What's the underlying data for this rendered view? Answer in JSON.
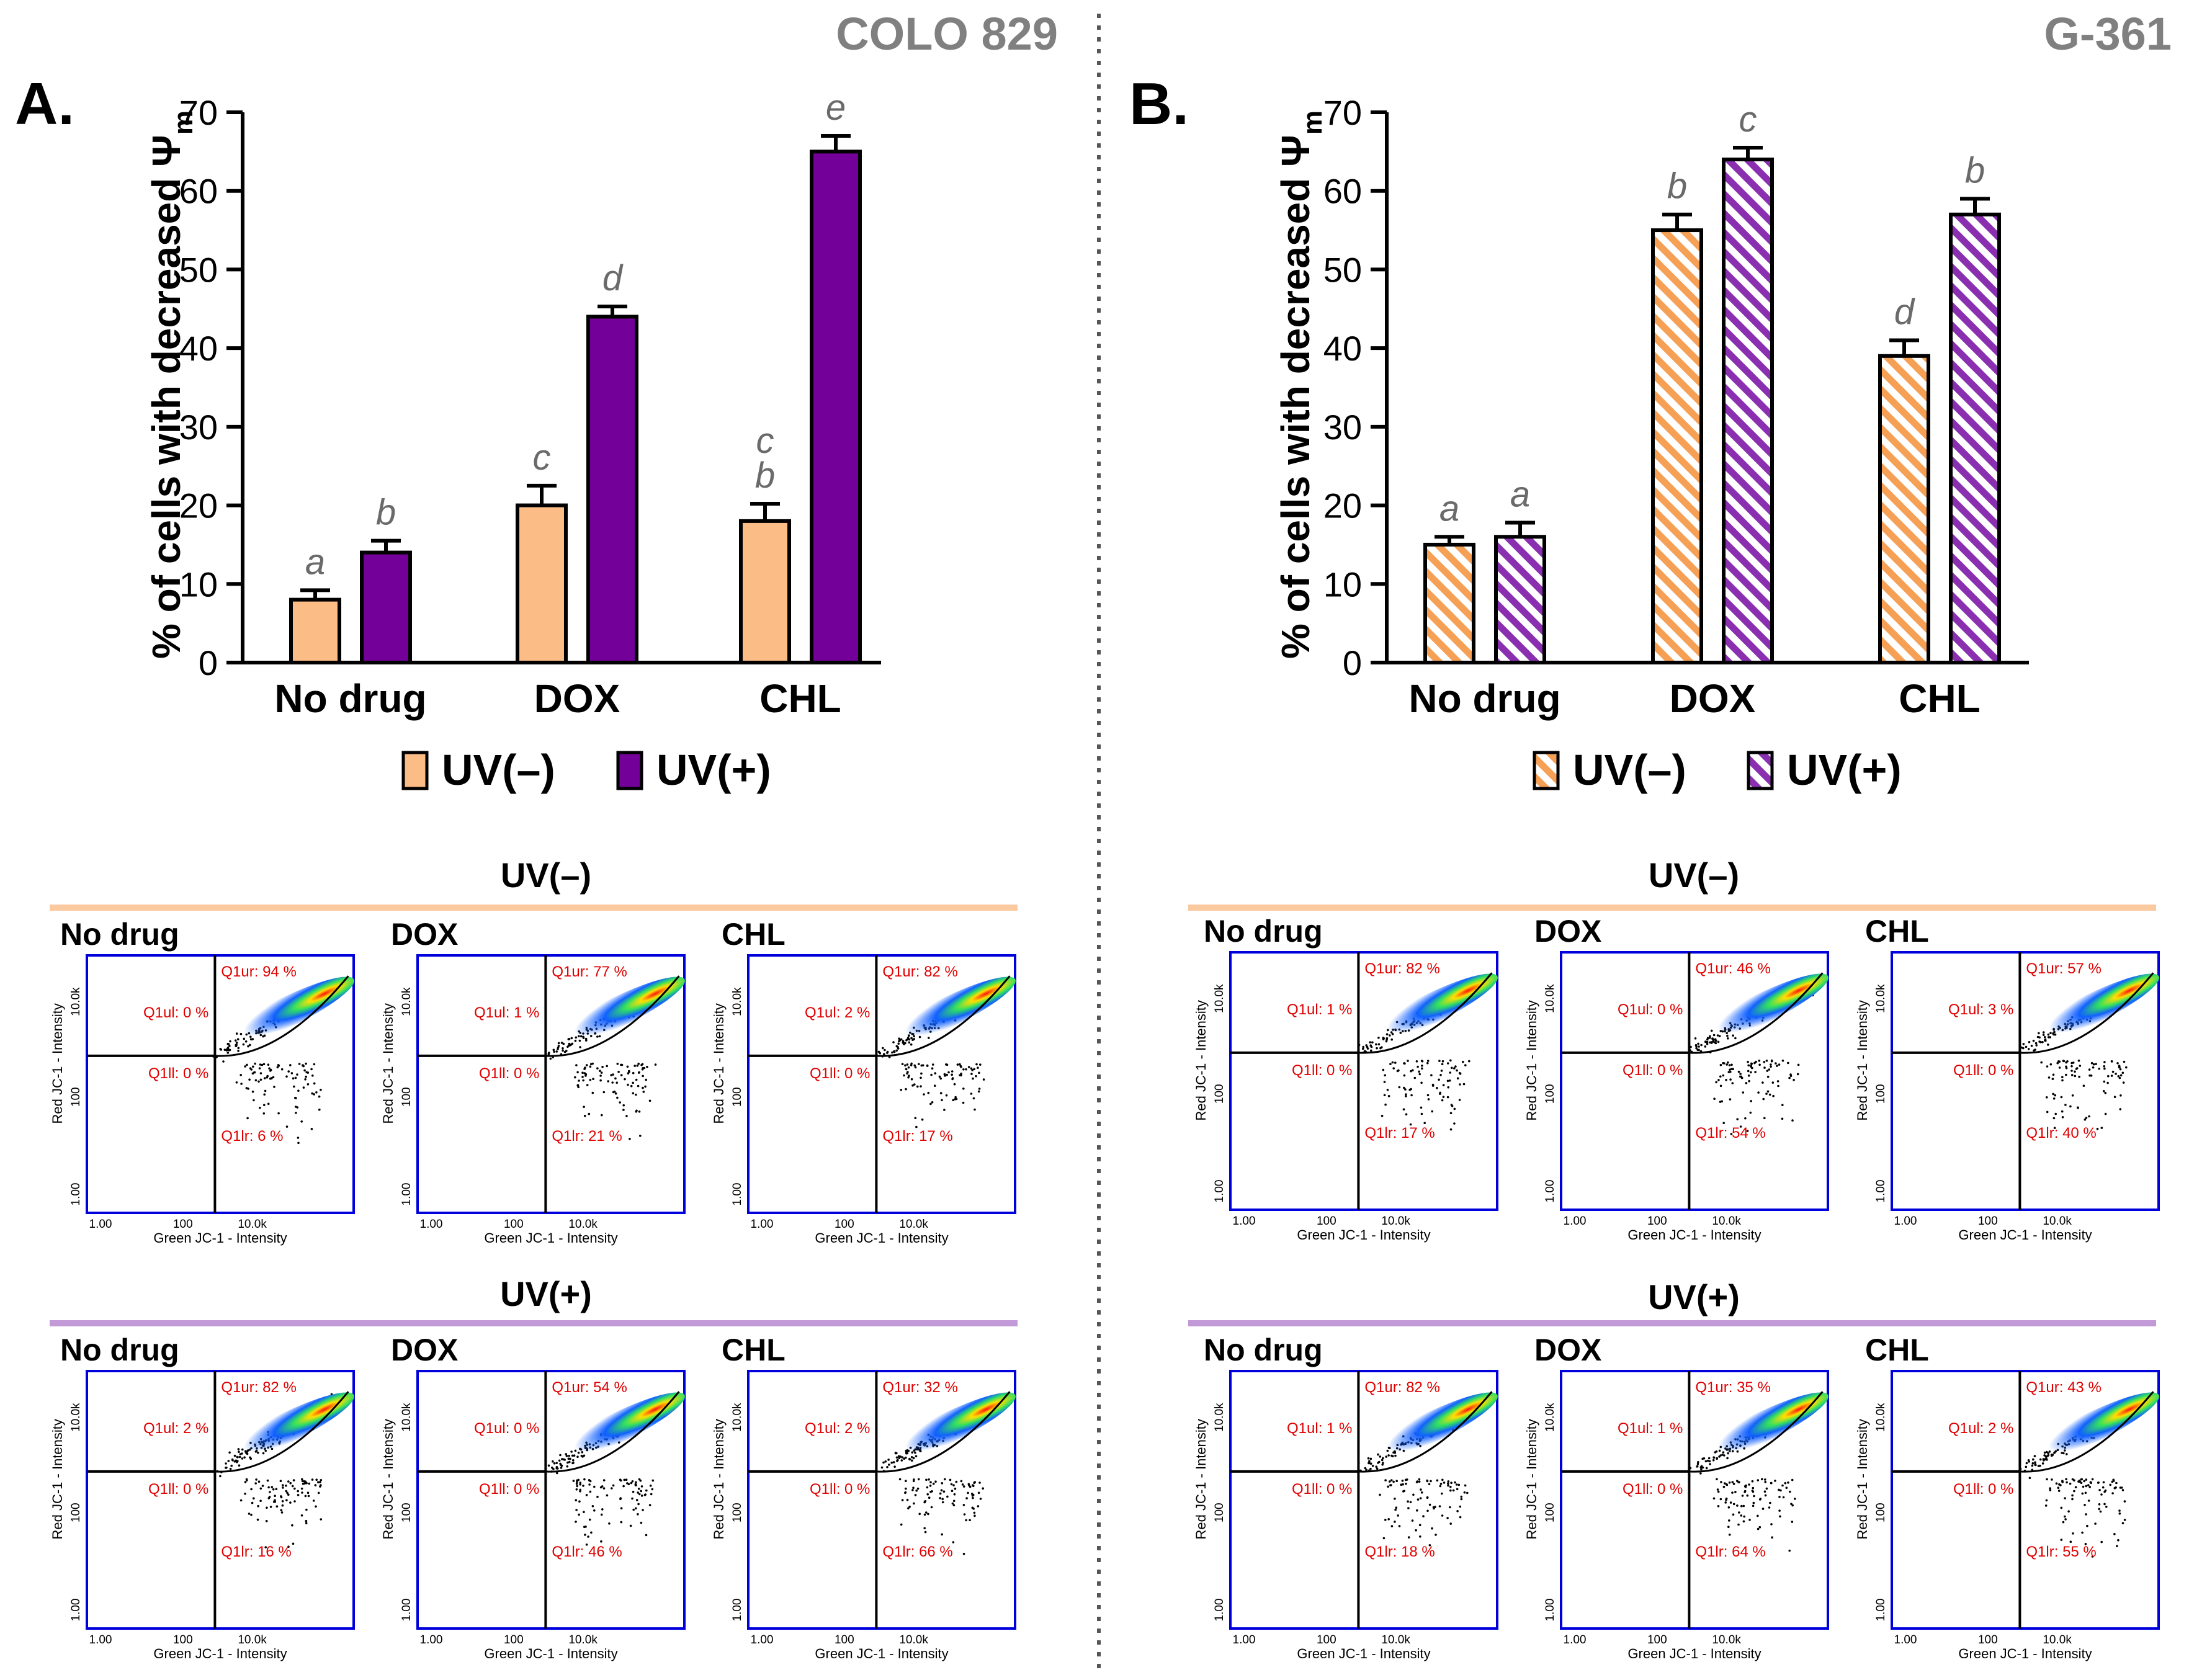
{
  "colors": {
    "orange": "#fcbc85",
    "purple": "#730098",
    "uvminus_line": "#fac9a0",
    "uvplus_line": "#c29ad8",
    "panel_border": "#0000dd",
    "quad_text": "#e00000",
    "cell_title": "#808080",
    "letter": "#6a6a6a"
  },
  "panels": {
    "A": {
      "label": "A.",
      "cell_line": "COLO 829",
      "chart_data": {
        "type": "bar",
        "ylabel_prefix": "% of cells with decreased Ψ",
        "ylabel_sub": "m",
        "ylim": [
          0,
          70
        ],
        "yticks": [
          "0",
          "10",
          "20",
          "30",
          "40",
          "50",
          "60",
          "70"
        ],
        "categories": [
          "No drug",
          "DOX",
          "CHL"
        ],
        "series": [
          {
            "name": "UV(–)",
            "values": [
              8,
              20,
              18
            ],
            "errors": [
              1.2,
              2.5,
              2.2
            ],
            "letters": [
              "a",
              "c",
              "c\nb"
            ]
          },
          {
            "name": "UV(+)",
            "values": [
              14,
              44,
              65
            ],
            "errors": [
              1.5,
              1.3,
              2.0
            ],
            "letters": [
              "b",
              "d",
              "e"
            ]
          }
        ],
        "pattern": "solid"
      },
      "legend": [
        "UV(–)",
        "UV(+)"
      ]
    },
    "B": {
      "label": "B.",
      "cell_line": "G-361",
      "chart_data": {
        "type": "bar",
        "ylabel_prefix": "% of cells with decreased Ψ",
        "ylabel_sub": "m",
        "ylim": [
          0,
          70
        ],
        "yticks": [
          "0",
          "10",
          "20",
          "30",
          "40",
          "50",
          "60",
          "70"
        ],
        "categories": [
          "No drug",
          "DOX",
          "CHL"
        ],
        "series": [
          {
            "name": "UV(–)",
            "values": [
              15,
              55,
              39
            ],
            "errors": [
              1.0,
              2.0,
              2.0
            ],
            "letters": [
              "a",
              "b",
              "d"
            ]
          },
          {
            "name": "UV(+)",
            "values": [
              16,
              64,
              57
            ],
            "errors": [
              1.8,
              1.5,
              2.0
            ],
            "letters": [
              "a",
              "c",
              "b"
            ]
          }
        ],
        "pattern": "hatched"
      },
      "legend": [
        "UV(–)",
        "UV(+)"
      ]
    }
  },
  "flow": {
    "axis": {
      "xlabel": "Green JC-1 - Intensity",
      "ylabel": "Red JC-1 - Intensity",
      "xticks": [
        "1.00",
        "100",
        "10.0k"
      ],
      "yticks": [
        "1.00",
        "100",
        "10.0k"
      ]
    },
    "groups": [
      {
        "side": "A",
        "title": "UV(–)",
        "plots": [
          {
            "name": "No drug",
            "ul": "Q1ul: 0 %",
            "ur": "Q1ur: 94 %",
            "ll": "Q1ll: 0 %",
            "lr": "Q1lr: 6 %"
          },
          {
            "name": "DOX",
            "ul": "Q1ul: 1 %",
            "ur": "Q1ur: 77 %",
            "ll": "Q1ll: 0 %",
            "lr": "Q1lr: 21 %"
          },
          {
            "name": "CHL",
            "ul": "Q1ul: 2 %",
            "ur": "Q1ur: 82 %",
            "ll": "Q1ll: 0 %",
            "lr": "Q1lr: 17 %"
          }
        ]
      },
      {
        "side": "A",
        "title": "UV(+)",
        "plots": [
          {
            "name": "No drug",
            "ul": "Q1ul: 2 %",
            "ur": "Q1ur: 82 %",
            "ll": "Q1ll: 0 %",
            "lr": "Q1lr: 16 %"
          },
          {
            "name": "DOX",
            "ul": "Q1ul: 0 %",
            "ur": "Q1ur: 54 %",
            "ll": "Q1ll: 0 %",
            "lr": "Q1lr: 46 %"
          },
          {
            "name": "CHL",
            "ul": "Q1ul: 2 %",
            "ur": "Q1ur: 32 %",
            "ll": "Q1ll: 0 %",
            "lr": "Q1lr: 66 %"
          }
        ]
      },
      {
        "side": "B",
        "title": "UV(–)",
        "plots": [
          {
            "name": "No drug",
            "ul": "Q1ul: 1 %",
            "ur": "Q1ur: 82 %",
            "ll": "Q1ll: 0 %",
            "lr": "Q1lr: 17 %"
          },
          {
            "name": "DOX",
            "ul": "Q1ul: 0 %",
            "ur": "Q1ur: 46 %",
            "ll": "Q1ll: 0 %",
            "lr": "Q1lr: 54 %"
          },
          {
            "name": "CHL",
            "ul": "Q1ul: 3 %",
            "ur": "Q1ur: 57 %",
            "ll": "Q1ll: 0 %",
            "lr": "Q1lr: 40 %"
          }
        ]
      },
      {
        "side": "B",
        "title": "UV(+)",
        "plots": [
          {
            "name": "No drug",
            "ul": "Q1ul: 1 %",
            "ur": "Q1ur: 82 %",
            "ll": "Q1ll: 0 %",
            "lr": "Q1lr: 18 %"
          },
          {
            "name": "DOX",
            "ul": "Q1ul: 1 %",
            "ur": "Q1ur: 35 %",
            "ll": "Q1ll: 0 %",
            "lr": "Q1lr: 64 %"
          },
          {
            "name": "CHL",
            "ul": "Q1ul: 2 %",
            "ur": "Q1ur: 43 %",
            "ll": "Q1ll: 0 %",
            "lr": "Q1lr: 55 %"
          }
        ]
      }
    ]
  }
}
